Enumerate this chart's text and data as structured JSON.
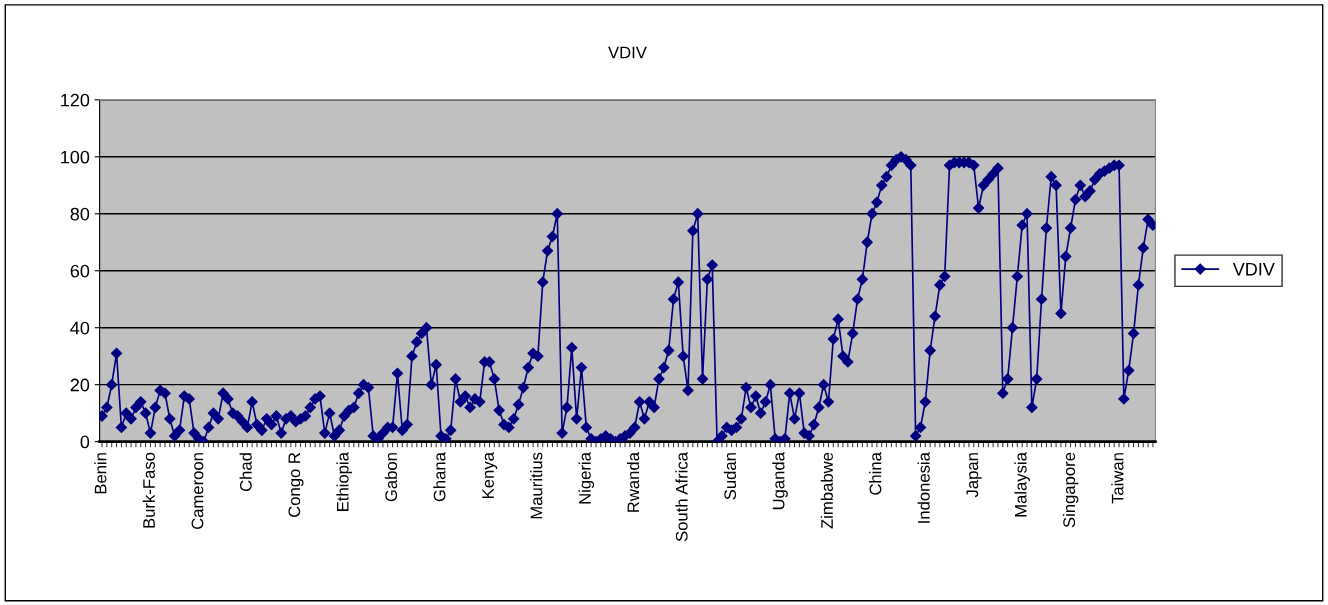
{
  "chart_data": {
    "type": "line",
    "title": "VDIV",
    "categories": [
      "Benin",
      null,
      null,
      null,
      null,
      null,
      null,
      null,
      null,
      null,
      "Burk-Faso",
      null,
      null,
      null,
      null,
      null,
      null,
      null,
      null,
      null,
      "Cameroon",
      null,
      null,
      null,
      null,
      null,
      null,
      null,
      null,
      null,
      "Chad",
      null,
      null,
      null,
      null,
      null,
      null,
      null,
      null,
      null,
      "Congo R",
      null,
      null,
      null,
      null,
      null,
      null,
      null,
      null,
      null,
      "Ethiopia",
      null,
      null,
      null,
      null,
      null,
      null,
      null,
      null,
      null,
      "Gabon",
      null,
      null,
      null,
      null,
      null,
      null,
      null,
      null,
      null,
      "Ghana",
      null,
      null,
      null,
      null,
      null,
      null,
      null,
      null,
      null,
      "Kenya",
      null,
      null,
      null,
      null,
      null,
      null,
      null,
      null,
      null,
      "Mauritius",
      null,
      null,
      null,
      null,
      null,
      null,
      null,
      null,
      null,
      "Nigeria",
      null,
      null,
      null,
      null,
      null,
      null,
      null,
      null,
      null,
      "Rwanda",
      null,
      null,
      null,
      null,
      null,
      null,
      null,
      null,
      null,
      "South Africa",
      null,
      null,
      null,
      null,
      null,
      null,
      null,
      null,
      null,
      "Sudan",
      null,
      null,
      null,
      null,
      null,
      null,
      null,
      null,
      null,
      "Uganda",
      null,
      null,
      null,
      null,
      null,
      null,
      null,
      null,
      null,
      "Zimbabwe",
      null,
      null,
      null,
      null,
      null,
      null,
      null,
      null,
      null,
      "China",
      null,
      null,
      null,
      null,
      null,
      null,
      null,
      null,
      null,
      "Indonesia",
      null,
      null,
      null,
      null,
      null,
      null,
      null,
      null,
      null,
      "Japan",
      null,
      null,
      null,
      null,
      null,
      null,
      null,
      null,
      null,
      "Malaysia",
      null,
      null,
      null,
      null,
      null,
      null,
      null,
      null,
      null,
      "Singapore",
      null,
      null,
      null,
      null,
      null,
      null,
      null,
      null,
      null,
      "Taiwan",
      null,
      null,
      null,
      null,
      null,
      null,
      null
    ],
    "series": [
      {
        "name": "VDIV",
        "color": "#000080",
        "values": [
          9,
          12,
          20,
          31,
          5,
          10,
          8,
          12,
          14,
          10,
          3,
          12,
          18,
          17,
          8,
          2,
          4,
          16,
          15,
          3,
          1,
          0,
          5,
          10,
          8,
          17,
          15,
          10,
          9,
          7,
          5,
          14,
          6,
          4,
          8,
          6,
          9,
          3,
          8,
          9,
          7,
          8,
          9,
          12,
          15,
          16,
          3,
          10,
          2,
          4,
          9,
          11,
          12,
          17,
          20,
          19,
          2,
          1,
          3,
          5,
          5,
          24,
          4,
          6,
          30,
          35,
          38,
          40,
          20,
          27,
          2,
          1,
          4,
          22,
          14,
          16,
          12,
          15,
          14,
          28,
          28,
          22,
          11,
          6,
          5,
          8,
          13,
          19,
          26,
          31,
          30,
          56,
          67,
          72,
          80,
          3,
          12,
          33,
          8,
          26,
          5,
          1,
          0,
          1,
          2,
          1,
          0,
          1,
          2,
          3,
          5,
          14,
          8,
          14,
          12,
          22,
          26,
          32,
          50,
          56,
          30,
          18,
          74,
          80,
          22,
          57,
          62,
          0,
          2,
          5,
          4,
          5,
          8,
          19,
          12,
          16,
          10,
          14,
          20,
          1,
          0,
          1,
          17,
          8,
          17,
          3,
          2,
          6,
          12,
          20,
          14,
          36,
          43,
          30,
          28,
          38,
          50,
          57,
          70,
          80,
          84,
          90,
          93,
          97,
          99,
          100,
          99,
          97,
          2,
          5,
          14,
          32,
          44,
          55,
          58,
          97,
          98,
          98,
          98,
          98,
          97,
          82,
          90,
          92,
          94,
          96,
          17,
          22,
          40,
          58,
          76,
          80,
          12,
          22,
          50,
          75,
          93,
          90,
          45,
          65,
          75,
          85,
          90,
          86,
          88,
          92,
          94,
          95,
          96,
          97,
          97,
          15,
          25,
          38,
          55,
          68,
          78,
          76
        ]
      }
    ],
    "ylim": [
      0,
      120
    ],
    "yticks": [
      0,
      20,
      40,
      60,
      80,
      100,
      120
    ],
    "grid": "y",
    "legend": "right",
    "marker": "diamond",
    "line_style": "solid"
  }
}
